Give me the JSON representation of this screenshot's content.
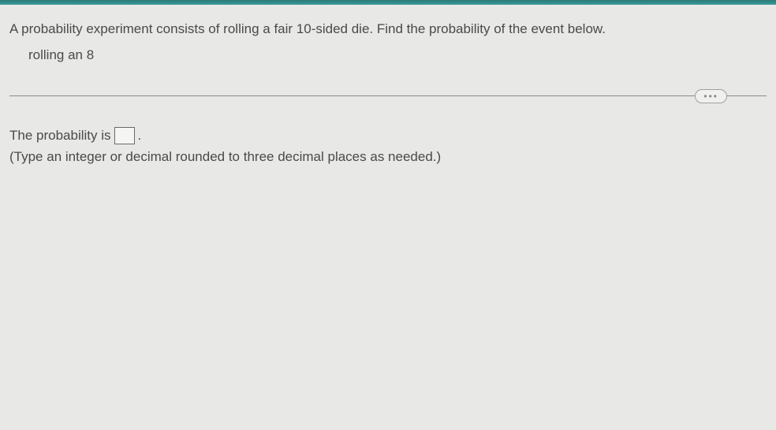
{
  "topBar": {
    "color": "#2b7a78"
  },
  "question": {
    "prompt": "A probability experiment consists of rolling a fair 10-sided die. Find the probability of the event below.",
    "event": "rolling an 8"
  },
  "ellipsis": "•••",
  "answer": {
    "prefix": "The probability is",
    "suffix": ".",
    "inputValue": "",
    "hint": "(Type an integer or decimal rounded to three decimal places as needed.)"
  },
  "colors": {
    "background": "#e8e8e6",
    "text": "#4a4a4a",
    "divider": "#8a8a8a",
    "inputBorder": "#6a6a6a"
  }
}
